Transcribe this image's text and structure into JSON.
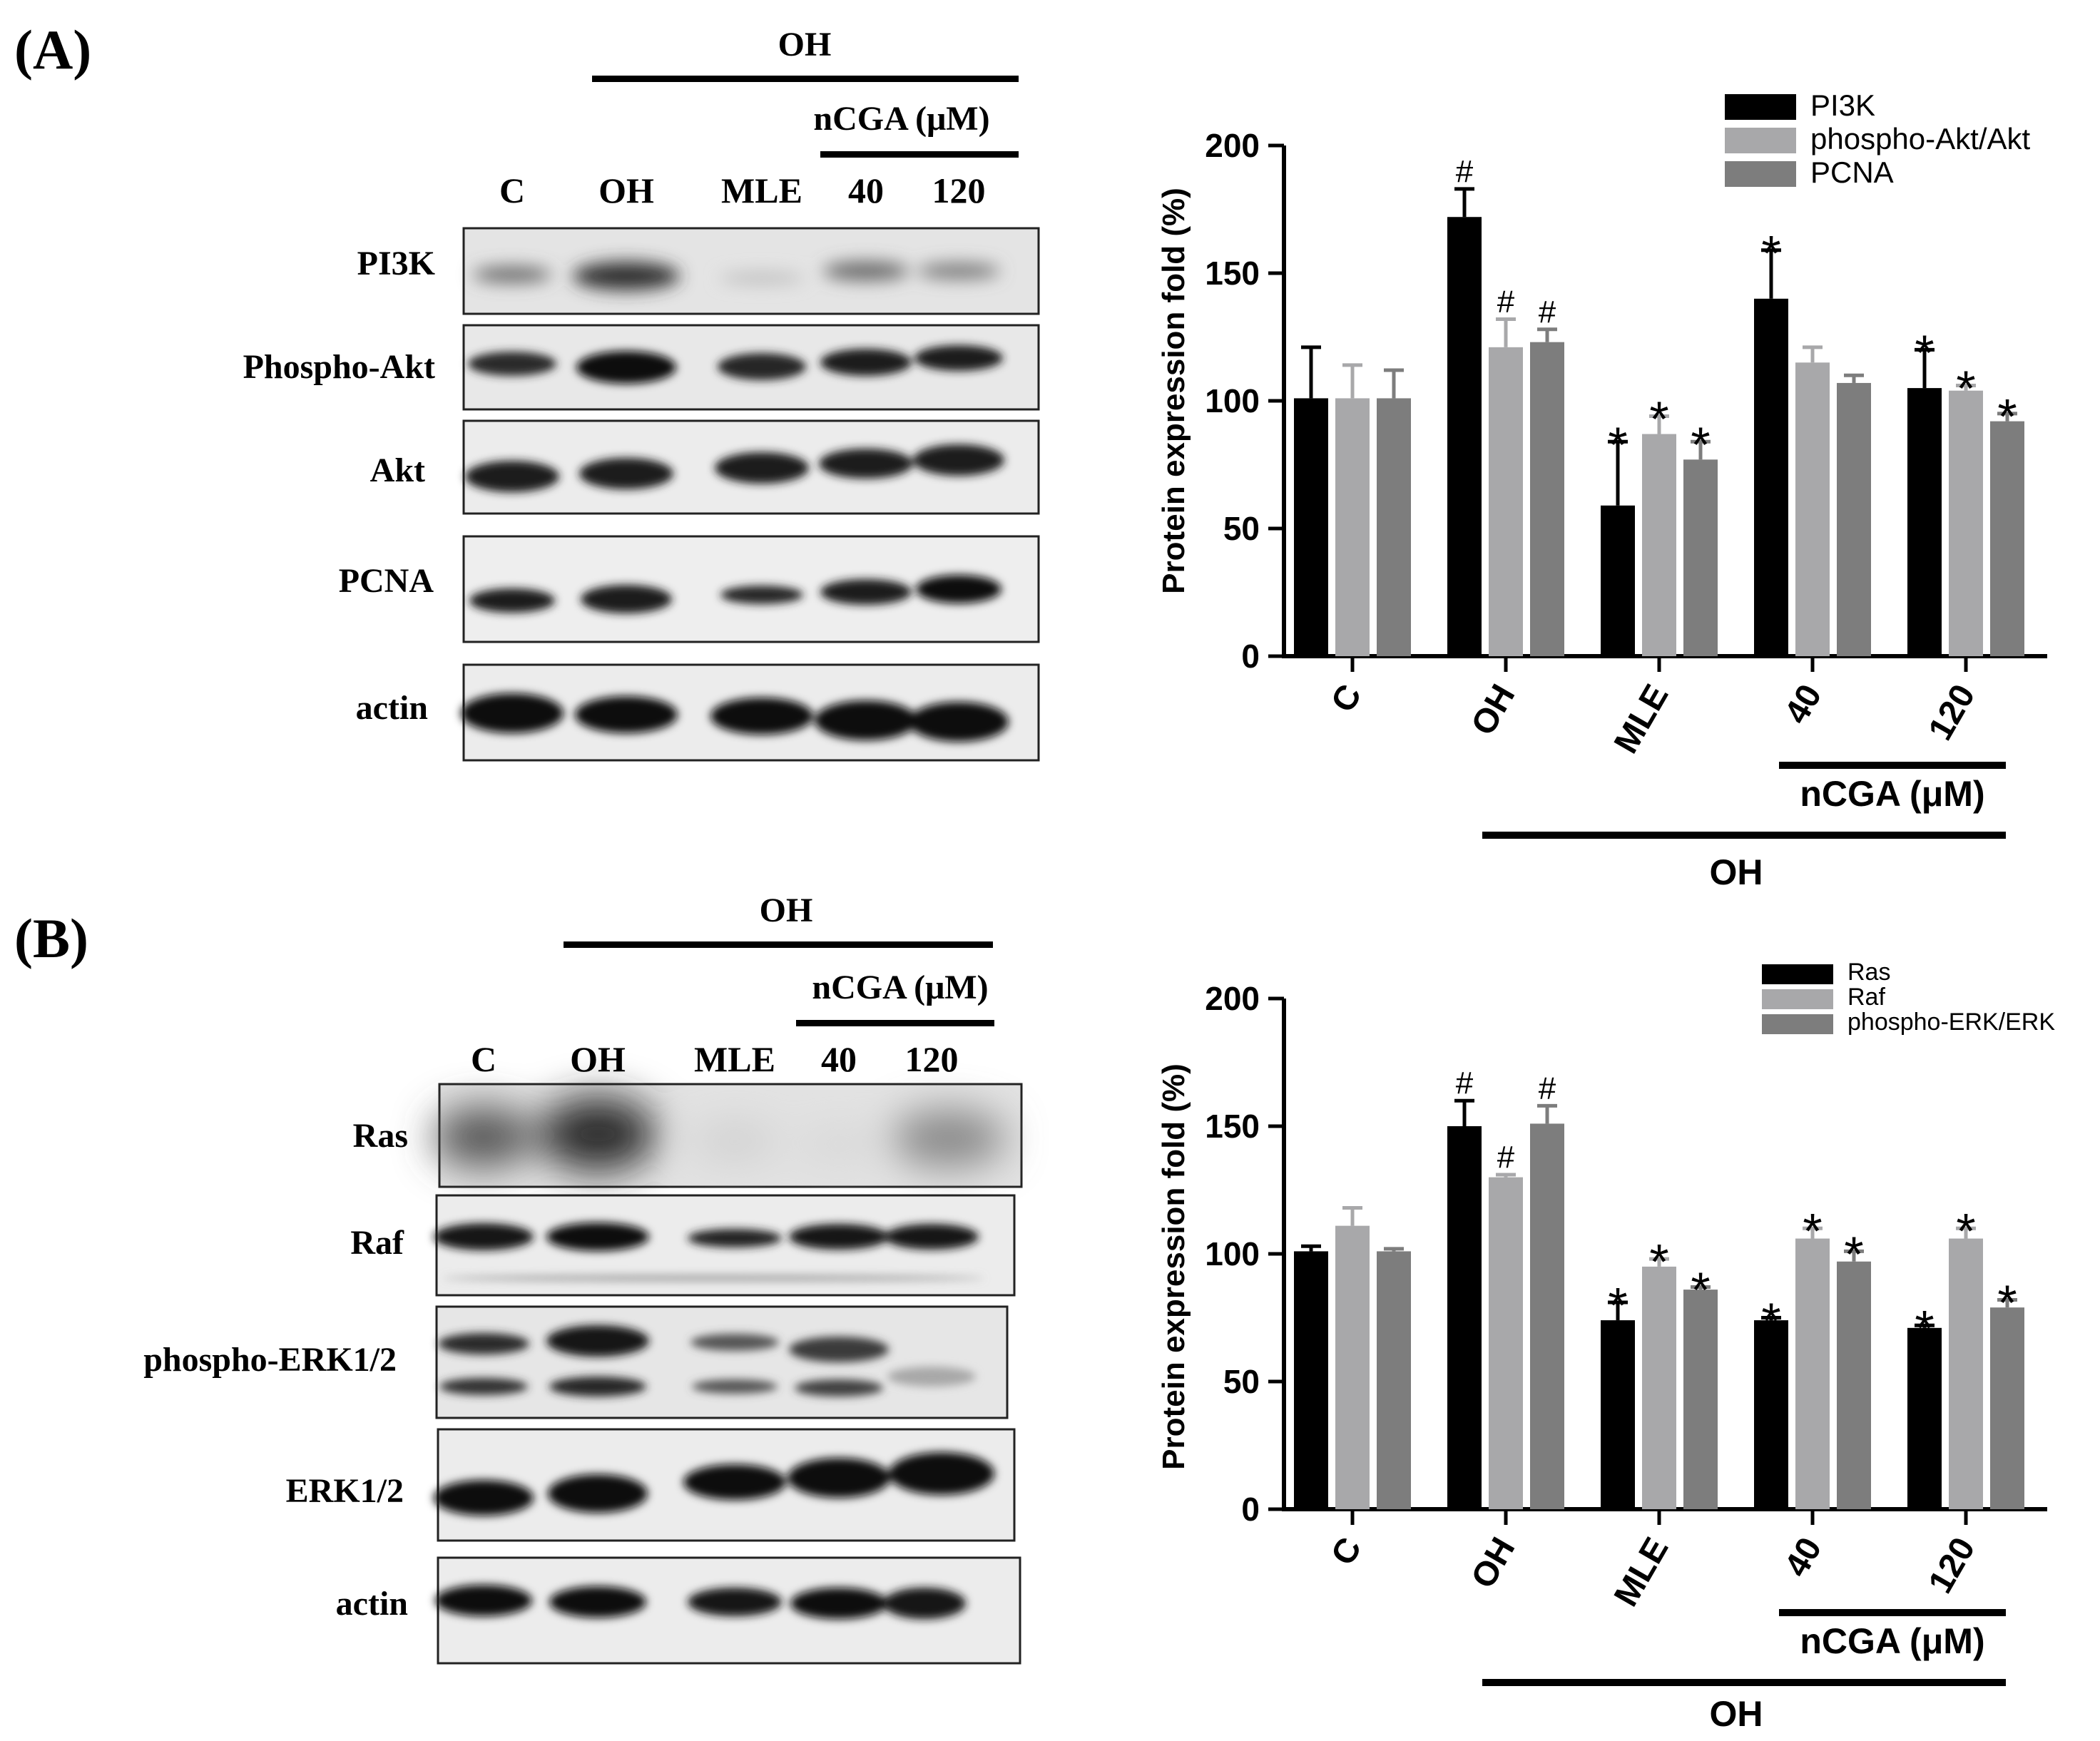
{
  "panelA": {
    "label": "(A)",
    "blot": {
      "treatment_header": "OH",
      "ncga_header": "nCGA (μM)",
      "lanes": [
        "C",
        "OH",
        "MLE",
        "40",
        "120"
      ],
      "rows": [
        "PI3K",
        "Phospho-Akt",
        "Akt",
        "PCNA",
        "actin"
      ]
    },
    "chart": {
      "ylabel": "Protein expression  fold (%)",
      "ncga_label": "nCGA (μM)",
      "oh_label": "OH"
    }
  },
  "panelB": {
    "label": "(B)",
    "blot": {
      "treatment_header": "OH",
      "ncga_header": "nCGA (μM)",
      "lanes": [
        "C",
        "OH",
        "MLE",
        "40",
        "120"
      ],
      "rows": [
        "Ras",
        "Raf",
        "phospho-ERK1/2",
        "ERK1/2",
        "actin"
      ]
    },
    "chart": {
      "ylabel": "Protein expression  fold (%)",
      "ncga_label": "nCGA (μM)",
      "oh_label": "OH"
    }
  },
  "chart_data": [
    {
      "type": "bar",
      "categories": [
        "C",
        "OH",
        "MLE",
        "40",
        "120"
      ],
      "ylim": [
        0,
        200
      ],
      "yticks": [
        0,
        50,
        100,
        150,
        200
      ],
      "ylabel": "Protein expression  fold (%)",
      "legend_position": "top-right",
      "series": [
        {
          "name": "PI3K",
          "color": "#000000",
          "values": [
            101,
            172,
            59,
            140,
            105
          ],
          "errors": [
            20,
            11,
            25,
            19,
            15
          ],
          "marks": [
            "",
            "#",
            "*",
            "*",
            "*"
          ]
        },
        {
          "name": "phospho-Akt/Akt",
          "color": "#a8a8aa",
          "values": [
            101,
            121,
            87,
            115,
            104
          ],
          "errors": [
            13,
            11,
            7,
            6,
            2
          ],
          "marks": [
            "",
            "#",
            "*",
            "",
            "*"
          ]
        },
        {
          "name": "PCNA",
          "color": "#7d7d7d",
          "values": [
            101,
            123,
            77,
            107,
            92
          ],
          "errors": [
            11,
            5,
            7,
            3,
            3
          ],
          "marks": [
            "",
            "#",
            "*",
            "",
            "*"
          ]
        }
      ]
    },
    {
      "type": "bar",
      "categories": [
        "C",
        "OH",
        "MLE",
        "40",
        "120"
      ],
      "ylim": [
        0,
        200
      ],
      "yticks": [
        0,
        50,
        100,
        150,
        200
      ],
      "ylabel": "Protein expression  fold (%)",
      "legend_position": "top-right",
      "series": [
        {
          "name": "Ras",
          "color": "#000000",
          "values": [
            101,
            150,
            74,
            74,
            71
          ],
          "errors": [
            2,
            10,
            7,
            1,
            1
          ],
          "marks": [
            "",
            "#",
            "*",
            "*",
            "*"
          ]
        },
        {
          "name": "Raf",
          "color": "#a8a8aa",
          "values": [
            111,
            130,
            95,
            106,
            106
          ],
          "errors": [
            7,
            1,
            3,
            4,
            4
          ],
          "marks": [
            "",
            "#",
            "*",
            "*",
            "*"
          ]
        },
        {
          "name": "phospho-ERK/ERK",
          "color": "#7d7d7d",
          "values": [
            101,
            151,
            86,
            97,
            79
          ],
          "errors": [
            1,
            7,
            1,
            4,
            3
          ],
          "marks": [
            "",
            "#",
            "*",
            "*",
            "*"
          ]
        }
      ]
    }
  ]
}
